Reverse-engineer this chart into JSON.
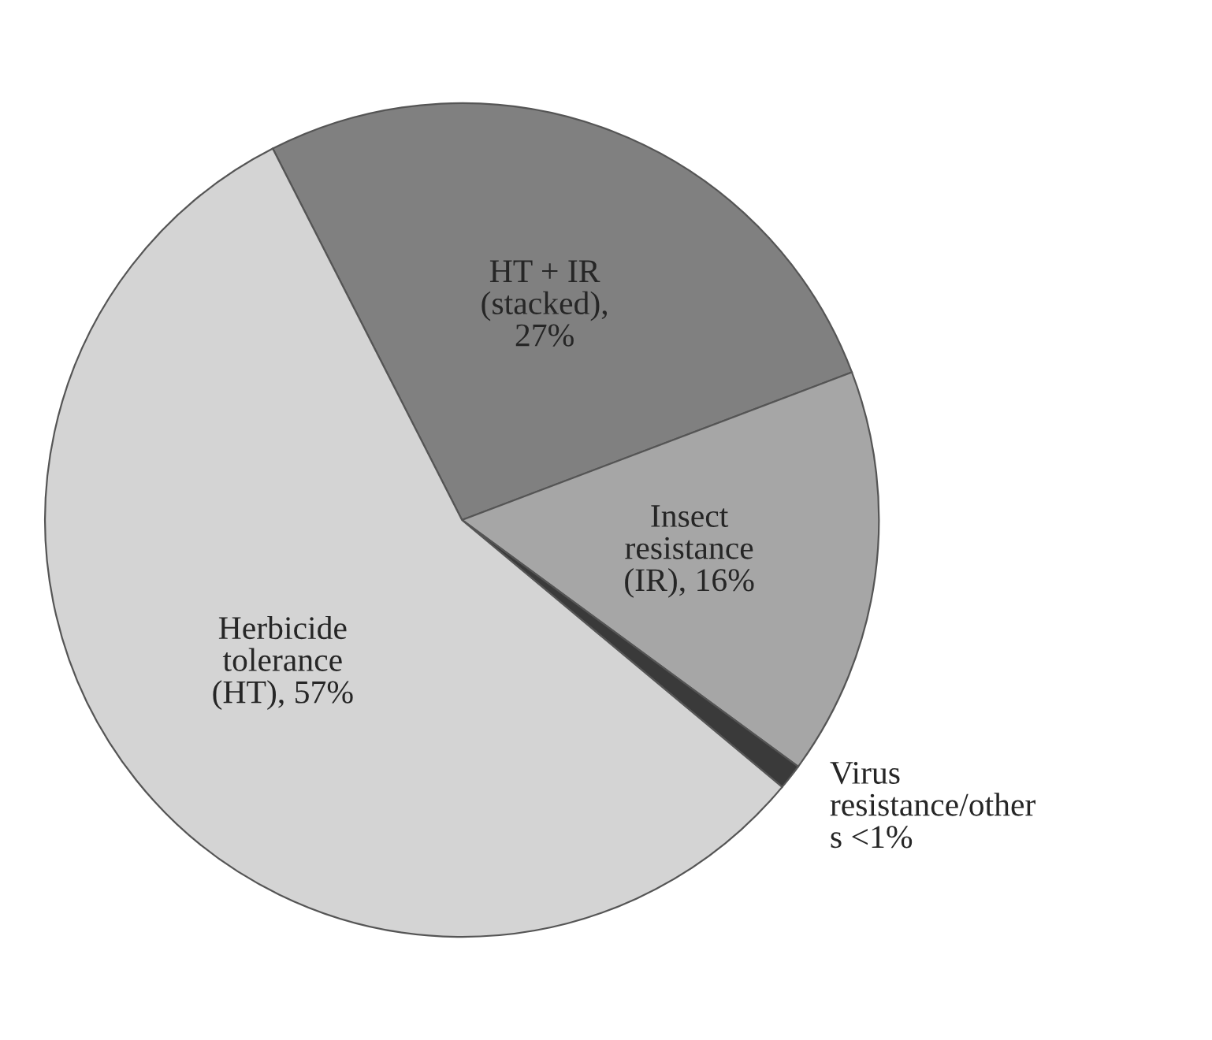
{
  "chart_data": {
    "type": "pie",
    "categories": [
      "HT + IR\n(stacked),\n27%",
      "Insect\nresistance\n(IR), 16%",
      "Virus\nresistance/other\ns <1%",
      "Herbicide\ntolerance\n(HT), 57%"
    ],
    "values": [
      27,
      16,
      1,
      57
    ],
    "colors": [
      "#808080",
      "#a6a6a6",
      "#3a3a3a",
      "#d4d4d4"
    ]
  }
}
